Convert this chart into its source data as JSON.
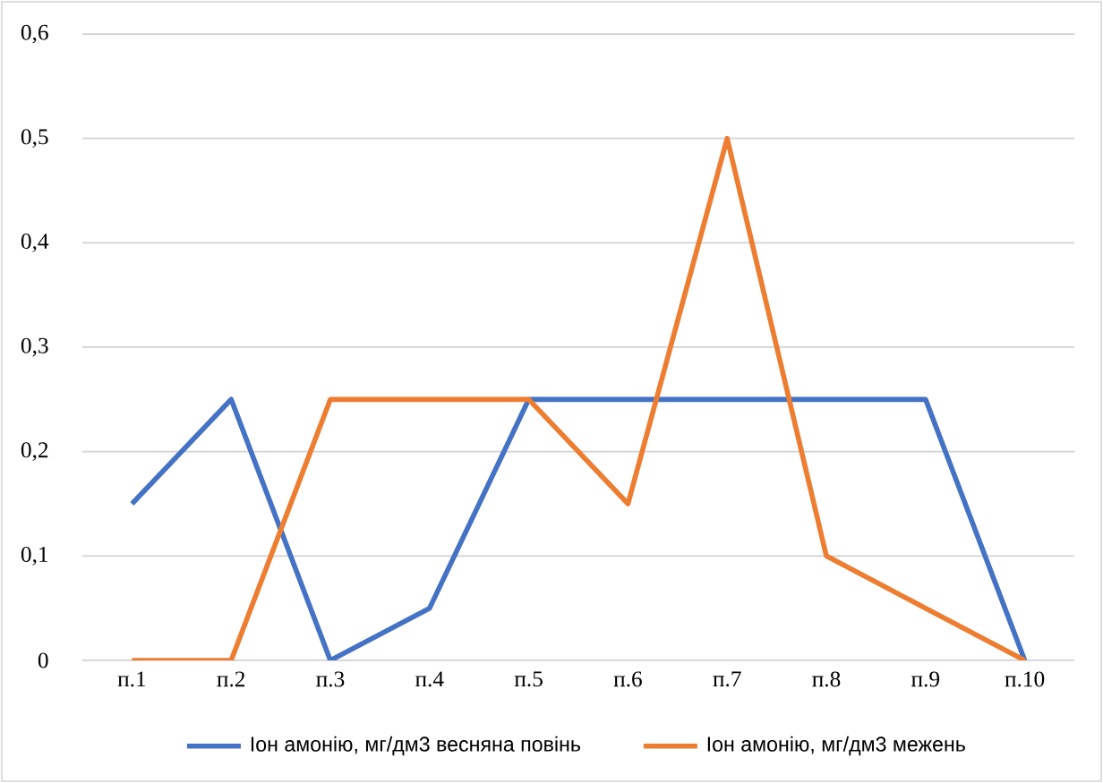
{
  "chart_data": {
    "type": "line",
    "categories": [
      "п.1",
      "п.2",
      "п.3",
      "п.4",
      "п.5",
      "п.6",
      "п.7",
      "п.8",
      "п.9",
      "п.10"
    ],
    "series": [
      {
        "name": "Іон амонію, мг/дм3 весняна повінь",
        "color": "#4472c4",
        "values": [
          0.15,
          0.25,
          0,
          0.05,
          0.25,
          0.25,
          0.25,
          0.25,
          0.25,
          0
        ]
      },
      {
        "name": "Іон амонію, мг/дм3 межень",
        "color": "#ed7d31",
        "values": [
          0,
          0,
          0.25,
          0.25,
          0.25,
          0.15,
          0.5,
          0.1,
          0.05,
          0
        ]
      }
    ],
    "ylim": [
      0,
      0.6
    ],
    "yticks": [
      0,
      {
        "value": 0.1,
        "label": "0,1"
      },
      {
        "value": 0.2,
        "label": "0,2"
      },
      {
        "value": 0.3,
        "label": "0,3"
      },
      {
        "value": 0.4,
        "label": "0,4"
      },
      {
        "value": 0.5,
        "label": "0,5"
      },
      {
        "value": 0.6,
        "label": "0,6"
      }
    ],
    "grid": "y",
    "legend": "bottom"
  }
}
